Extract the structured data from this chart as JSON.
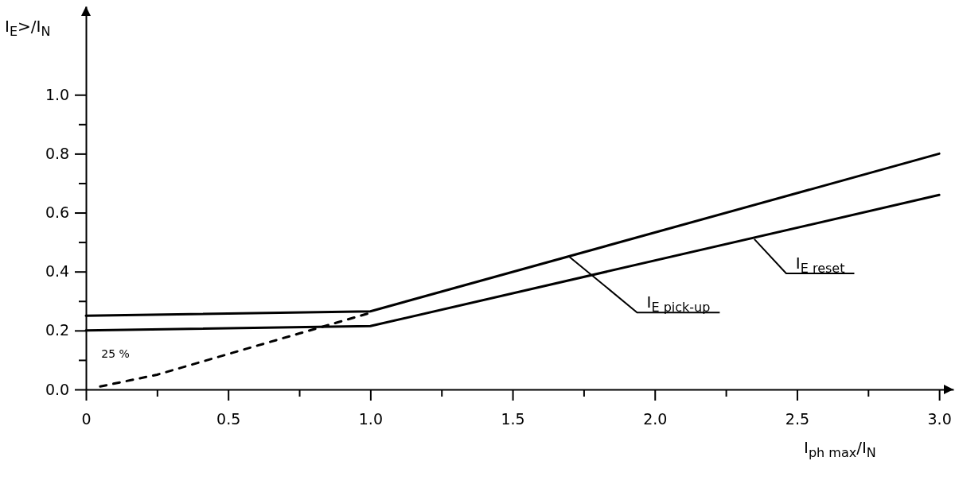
{
  "chart_data": {
    "type": "line",
    "xlabel": "I$_{ph max}$/I$_{N}$",
    "ylabel": "I$_{E}$>/I$_{N}$",
    "xlim": [
      0,
      3.05
    ],
    "ylim": [
      0,
      1.3
    ],
    "xticks": [
      {
        "value": 0,
        "label": "0"
      },
      {
        "value": 0.25,
        "label": null
      },
      0.5,
      {
        "value": 0.75,
        "label": null
      },
      {
        "value": 1,
        "label": "1.0"
      },
      {
        "value": 1.25,
        "label": null
      },
      1.5,
      {
        "value": 1.75,
        "label": null
      },
      {
        "value": 2,
        "label": "2.0"
      },
      {
        "value": 2.25,
        "label": null
      },
      2.5,
      {
        "value": 2.75,
        "label": null
      },
      {
        "value": 3,
        "label": "3.0"
      }
    ],
    "yticks": [
      {
        "value": 0,
        "label": "0.0"
      },
      {
        "value": 0.1,
        "label": null
      },
      0.2,
      {
        "value": 0.3,
        "label": null
      },
      0.4,
      {
        "value": 0.5,
        "label": null
      },
      0.6,
      {
        "value": 0.7,
        "label": null
      },
      0.8,
      {
        "value": 0.9,
        "label": null
      },
      {
        "value": 1,
        "label": "1.0"
      }
    ],
    "grid": false,
    "marker": "none",
    "series": [
      {
        "color": "#000000",
        "x": [
          0,
          1,
          3
        ],
        "values": [
          0.25,
          0.265,
          0.8
        ],
        "line_style": "solid"
      },
      {
        "color": "#000000",
        "x": [
          0,
          1,
          3
        ],
        "values": [
          0.2,
          0.215,
          0.66
        ],
        "line_style": "solid"
      },
      {
        "color": "#000000",
        "x": [
          0.05,
          0.25,
          0.5,
          0.75,
          1
        ],
        "values": [
          0.01,
          0.05,
          0.12,
          0.19,
          0.26
        ],
        "line_style": "dashed"
      }
    ],
    "annotations": [
      {
        "text": "I$_{E pick-up}$",
        "x": 1.7,
        "y": 0.45
      },
      {
        "text": "I$_{E reset}$",
        "x": 2.35,
        "y": 0.51
      },
      {
        "text": "25 %",
        "x": 0.25,
        "y": 0.05
      }
    ]
  }
}
